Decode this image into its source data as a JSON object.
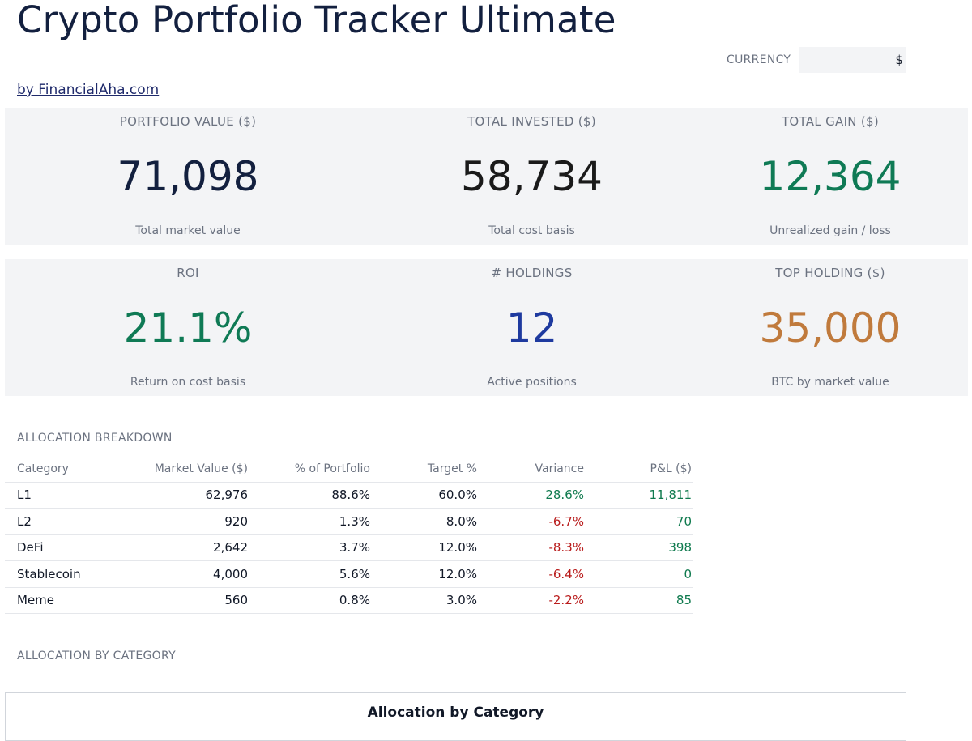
{
  "header": {
    "title": "Crypto Portfolio Tracker Ultimate",
    "currency_label": "CURRENCY",
    "currency_value": "$",
    "credit": "by FinancialAha.com"
  },
  "kpis": {
    "row1": [
      {
        "label": "PORTFOLIO VALUE ($)",
        "value": "71,098",
        "sub": "Total market value",
        "color": "#13203f"
      },
      {
        "label": "TOTAL INVESTED ($)",
        "value": "58,734",
        "sub": "Total cost basis",
        "color": "#1a1a1a"
      },
      {
        "label": "TOTAL GAIN ($)",
        "value": "12,364",
        "sub": "Unrealized gain / loss",
        "color": "#0f7a55"
      }
    ],
    "row2": [
      {
        "label": "ROI",
        "value": "21.1%",
        "sub": "Return on cost basis",
        "color": "#0f7a55"
      },
      {
        "label": "# HOLDINGS",
        "value": "12",
        "sub": "Active positions",
        "color": "#1e3a9f"
      },
      {
        "label": "TOP HOLDING ($)",
        "value": "35,000",
        "sub": "BTC by market value",
        "color": "#c07a3c"
      }
    ]
  },
  "allocation": {
    "section_label": "ALLOCATION BREAKDOWN",
    "columns": [
      "Category",
      "Market Value ($)",
      "% of Portfolio",
      "Target %",
      "Variance",
      "P&L ($)"
    ],
    "rows": [
      {
        "category": "L1",
        "market_value": "62,976",
        "pct": "88.6%",
        "target": "60.0%",
        "variance": "28.6%",
        "variance_sign": "pos",
        "pnl": "11,811",
        "pnl_sign": "pos"
      },
      {
        "category": "L2",
        "market_value": "920",
        "pct": "1.3%",
        "target": "8.0%",
        "variance": "-6.7%",
        "variance_sign": "neg",
        "pnl": "70",
        "pnl_sign": "pos"
      },
      {
        "category": "DeFi",
        "market_value": "2,642",
        "pct": "3.7%",
        "target": "12.0%",
        "variance": "-8.3%",
        "variance_sign": "neg",
        "pnl": "398",
        "pnl_sign": "pos"
      },
      {
        "category": "Stablecoin",
        "market_value": "4,000",
        "pct": "5.6%",
        "target": "12.0%",
        "variance": "-6.4%",
        "variance_sign": "neg",
        "pnl": "0",
        "pnl_sign": "pos"
      },
      {
        "category": "Meme",
        "market_value": "560",
        "pct": "0.8%",
        "target": "3.0%",
        "variance": "-2.2%",
        "variance_sign": "neg",
        "pnl": "85",
        "pnl_sign": "pos"
      }
    ]
  },
  "chart_section": {
    "section_label": "ALLOCATION BY CATEGORY",
    "chart_title": "Allocation by Category"
  },
  "colors": {
    "positive": "#0f7a4e",
    "negative": "#b91c1c",
    "card_bg": "#f3f4f6"
  }
}
